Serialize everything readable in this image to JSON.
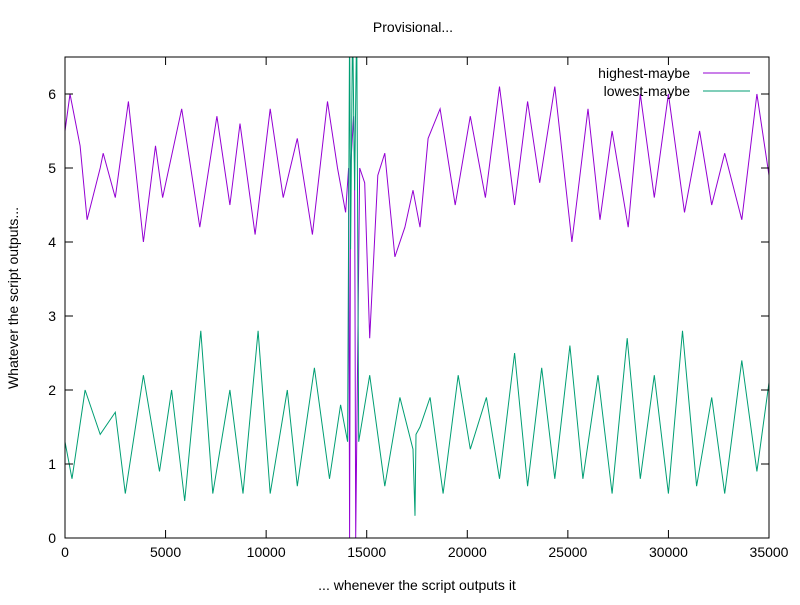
{
  "chart_data": {
    "type": "line",
    "title": "Provisional...",
    "xlabel": "... whenever the script outputs it",
    "ylabel": "Whatever the script outputs...",
    "xlim": [
      0,
      35000
    ],
    "ylim": [
      0,
      6.5
    ],
    "xticks": [
      "0",
      "5000",
      "10000",
      "15000",
      "20000",
      "25000",
      "30000",
      "35000"
    ],
    "yticks": [
      "0",
      "1",
      "2",
      "3",
      "4",
      "5",
      "6"
    ],
    "grid": false,
    "legend_position": "top-right",
    "series": [
      {
        "name": "highest-maybe",
        "color": "#9400d3",
        "x": [
          0,
          250,
          750,
          1100,
          1750,
          1900,
          2500,
          3150,
          3900,
          4500,
          4850,
          5800,
          6700,
          7550,
          8200,
          8700,
          9450,
          10200,
          10850,
          11550,
          12300,
          13050,
          13550,
          13950,
          14100,
          14150,
          14200,
          14350,
          14400,
          14450,
          14650,
          14900,
          15150,
          15550,
          15900,
          16150,
          16400,
          16900,
          17300,
          17650,
          18050,
          18650,
          19400,
          20150,
          20900,
          21600,
          22350,
          23000,
          23600,
          24350,
          25200,
          26000,
          26600,
          27200,
          28000,
          28600,
          29300,
          30000,
          30800,
          31550,
          32150,
          32800,
          33650,
          34400,
          35000
        ],
        "y": [
          5.5,
          6.0,
          5.3,
          4.3,
          5.0,
          5.2,
          4.6,
          5.9,
          4.0,
          5.3,
          4.6,
          5.8,
          4.2,
          5.7,
          4.5,
          5.6,
          4.1,
          5.8,
          4.6,
          5.4,
          4.1,
          5.9,
          5.0,
          4.4,
          5.0,
          0,
          5.0,
          5.7,
          5.0,
          0,
          5.0,
          4.8,
          2.7,
          4.9,
          5.2,
          4.5,
          3.8,
          4.2,
          4.7,
          4.2,
          5.4,
          5.8,
          4.5,
          5.7,
          4.6,
          6.1,
          4.5,
          5.9,
          4.8,
          6.1,
          4.0,
          5.8,
          4.3,
          5.5,
          4.2,
          6.0,
          4.6,
          6.0,
          4.4,
          5.5,
          4.5,
          5.2,
          4.3,
          6.0,
          4.9
        ]
      },
      {
        "name": "lowest-maybe",
        "color": "#009e73",
        "x": [
          0,
          350,
          1000,
          1750,
          2500,
          3000,
          3900,
          4700,
          5300,
          5950,
          6750,
          7350,
          8200,
          8850,
          9600,
          10200,
          11050,
          11550,
          12400,
          13150,
          13700,
          14050,
          14150,
          14200,
          14300,
          14400,
          14500,
          14600,
          15150,
          15900,
          16650,
          17300,
          17400,
          17450,
          17650,
          18150,
          18800,
          19550,
          20150,
          20950,
          21600,
          22350,
          23000,
          23700,
          24350,
          25100,
          25750,
          26500,
          27200,
          27950,
          28600,
          29300,
          30000,
          30700,
          31400,
          32150,
          32800,
          33650,
          34400,
          35000
        ],
        "y": [
          1.3,
          0.8,
          2.0,
          1.4,
          1.7,
          0.6,
          2.2,
          0.9,
          2.0,
          0.5,
          2.8,
          0.6,
          2.0,
          0.6,
          2.8,
          0.6,
          2.0,
          0.7,
          2.3,
          0.8,
          1.8,
          1.3,
          7,
          3.9,
          7,
          4.7,
          7,
          1.3,
          2.2,
          0.7,
          1.9,
          1.2,
          0.3,
          1.4,
          1.5,
          1.9,
          0.6,
          2.2,
          1.2,
          1.9,
          0.8,
          2.5,
          0.7,
          2.3,
          0.8,
          2.6,
          0.8,
          2.2,
          0.6,
          2.7,
          0.8,
          2.2,
          0.6,
          2.8,
          0.7,
          1.9,
          0.6,
          2.4,
          0.9,
          2.1
        ]
      }
    ]
  }
}
